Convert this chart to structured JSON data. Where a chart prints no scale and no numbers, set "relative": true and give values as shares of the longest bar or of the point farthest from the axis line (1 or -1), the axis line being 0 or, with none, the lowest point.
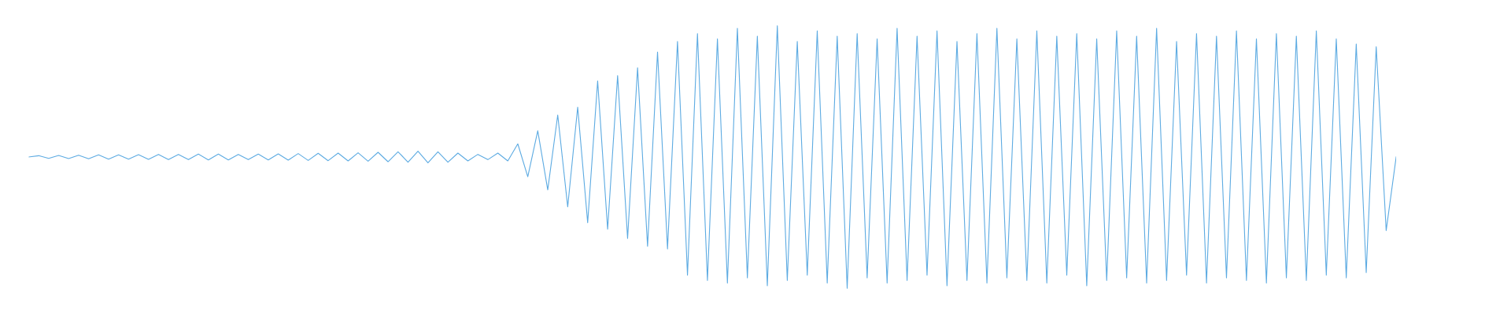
{
  "chart_data": {
    "type": "line",
    "relative": true,
    "marker": "none",
    "line_style": "solid",
    "categories": [
      null,
      null,
      null,
      null,
      null,
      null,
      null,
      null,
      null,
      null,
      null,
      null,
      null,
      null,
      null,
      null,
      null,
      null,
      null,
      null,
      null,
      null,
      null,
      null,
      null,
      null,
      null,
      null,
      null,
      null,
      null,
      null,
      null,
      null,
      null,
      null,
      null,
      null,
      null,
      null,
      null,
      null,
      null,
      null,
      null,
      null,
      null,
      null,
      null,
      null,
      null,
      null,
      null,
      null,
      null,
      null,
      null,
      null,
      null,
      null,
      null,
      null,
      null,
      null,
      null,
      null,
      null,
      null,
      null,
      null,
      null,
      null,
      null,
      null,
      null,
      null,
      null,
      null,
      null,
      null,
      null,
      null,
      null,
      null,
      null,
      null,
      null,
      null,
      null,
      null,
      null,
      null,
      null,
      null,
      null,
      null,
      null,
      null,
      null,
      null,
      null,
      null,
      null,
      null,
      null,
      null,
      null,
      null,
      null,
      null,
      null,
      null,
      null,
      null,
      null,
      null,
      null,
      null,
      null,
      null,
      null,
      null,
      null,
      null,
      null,
      null,
      null,
      null,
      null,
      null,
      null,
      null,
      null,
      null,
      null,
      null,
      null,
      null
    ],
    "series": [
      {
        "color": "#5dabe2",
        "values": [
          0.5,
          0.505,
          0.495,
          0.506,
          0.494,
          0.507,
          0.493,
          0.508,
          0.492,
          0.508,
          0.492,
          0.509,
          0.491,
          0.51,
          0.49,
          0.51,
          0.49,
          0.511,
          0.489,
          0.511,
          0.489,
          0.51,
          0.49,
          0.511,
          0.489,
          0.512,
          0.488,
          0.513,
          0.487,
          0.514,
          0.486,
          0.515,
          0.485,
          0.516,
          0.484,
          0.518,
          0.482,
          0.52,
          0.48,
          0.522,
          0.478,
          0.52,
          0.48,
          0.515,
          0.485,
          0.51,
          0.49,
          0.515,
          0.485,
          0.55,
          0.425,
          0.6,
          0.375,
          0.66,
          0.31,
          0.69,
          0.25,
          0.79,
          0.225,
          0.81,
          0.19,
          0.84,
          0.16,
          0.9,
          0.15,
          0.94,
          0.05,
          0.97,
          0.03,
          0.95,
          0.02,
          0.99,
          0.04,
          0.96,
          0.01,
          1.0,
          0.03,
          0.94,
          0.05,
          0.98,
          0.02,
          0.96,
          0.0,
          0.97,
          0.04,
          0.95,
          0.02,
          0.99,
          0.03,
          0.96,
          0.05,
          0.98,
          0.01,
          0.94,
          0.03,
          0.97,
          0.02,
          0.99,
          0.04,
          0.95,
          0.03,
          0.98,
          0.02,
          0.96,
          0.05,
          0.97,
          0.01,
          0.95,
          0.03,
          0.98,
          0.04,
          0.96,
          0.02,
          0.99,
          0.03,
          0.94,
          0.05,
          0.97,
          0.02,
          0.96,
          0.04,
          0.98,
          0.03,
          0.95,
          0.02,
          0.97,
          0.04,
          0.96,
          0.03,
          0.98,
          0.05,
          0.95,
          0.04,
          0.93,
          0.06,
          0.92,
          0.22,
          0.5
        ]
      }
    ]
  }
}
